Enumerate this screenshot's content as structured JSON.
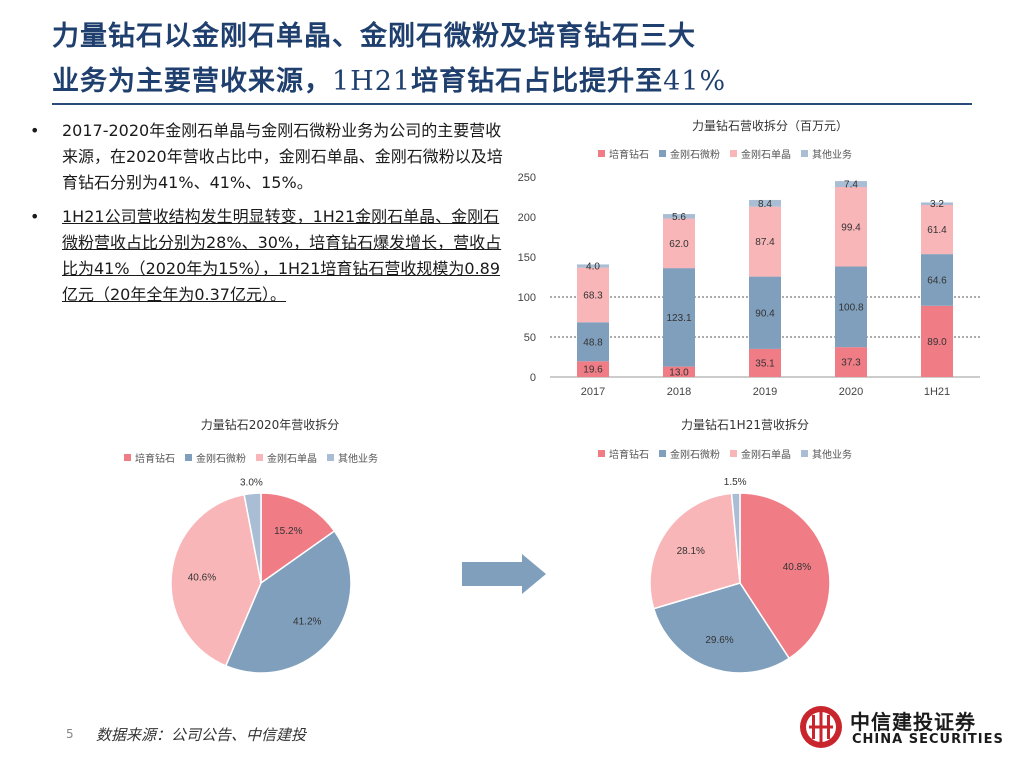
{
  "header": {
    "title_line1": "力量钻石以金刚石单晶、金刚石微粉及培育钻石三大",
    "title_line2_a": "业务为主要营收来源，",
    "title_line2_b": "1H21",
    "title_line2_c": "培育钻石占比提升至",
    "title_line2_d": "41%"
  },
  "bullets": [
    {
      "dot": "•",
      "text": "2017-2020年金刚石单晶与金刚石微粉业务为公司的主要营收来源，在2020年营收占比中，金刚石单晶、金刚石微粉以及培育钻石分别为41%、41%、15%。"
    },
    {
      "dot": "•",
      "text": "1H21公司营收结构发生明显转变，1H21金刚石单晶、金刚石微粉营收占比分别为28%、30%，培育钻石爆发增长，营收占比为41%（2020年为15%），1H21培育钻石营收规模为0.89亿元（20年全年为0.37亿元）。"
    }
  ],
  "colors": {
    "lab_diamond": "#f07d86",
    "micro_powder": "#7f9fbc",
    "single_crystal": "#f9b6b8",
    "other": "#a9bed4"
  },
  "chart_data": [
    {
      "type": "bar",
      "stacked": true,
      "title": "力量钻石营收拆分（百万元）",
      "categories": [
        "2017",
        "2018",
        "2019",
        "2020",
        "1H21"
      ],
      "series": [
        {
          "name": "培育钻石",
          "values": [
            19.6,
            13.0,
            35.1,
            37.3,
            89.0
          ]
        },
        {
          "name": "金刚石微粉",
          "values": [
            48.8,
            123.1,
            90.4,
            100.8,
            64.6
          ]
        },
        {
          "name": "金刚石单晶",
          "values": [
            68.3,
            62.0,
            87.4,
            99.4,
            61.4
          ]
        },
        {
          "name": "其他业务",
          "values": [
            4.0,
            5.6,
            8.4,
            7.4,
            3.2
          ]
        }
      ],
      "yticks": [
        "0",
        "50",
        "100",
        "150",
        "200",
        "250"
      ],
      "ylim": [
        0,
        250
      ],
      "gridlines": [
        50,
        100
      ],
      "legend": "top"
    },
    {
      "type": "pie",
      "title": "力量钻石2020年营收拆分",
      "labels": [
        "培育钻石",
        "金刚石微粉",
        "金刚石单晶",
        "其他业务"
      ],
      "values": [
        15.2,
        41.2,
        40.6,
        3.0
      ],
      "value_labels": [
        "15.2%",
        "41.2%",
        "40.6%",
        "3.0%"
      ],
      "legend": "top"
    },
    {
      "type": "pie",
      "title": "力量钻石1H21营收拆分",
      "labels": [
        "培育钻石",
        "金刚石微粉",
        "金刚石单晶",
        "其他业务"
      ],
      "values": [
        40.8,
        29.6,
        28.1,
        1.5
      ],
      "value_labels": [
        "40.8%",
        "29.6%",
        "28.1%",
        "1.5%"
      ],
      "legend": "top"
    }
  ],
  "footer": {
    "page": "5",
    "source": "数据来源：公司公告、中信建投"
  },
  "logo": {
    "cn": "中信建投证券",
    "en": "CHINA SECURITIES"
  }
}
